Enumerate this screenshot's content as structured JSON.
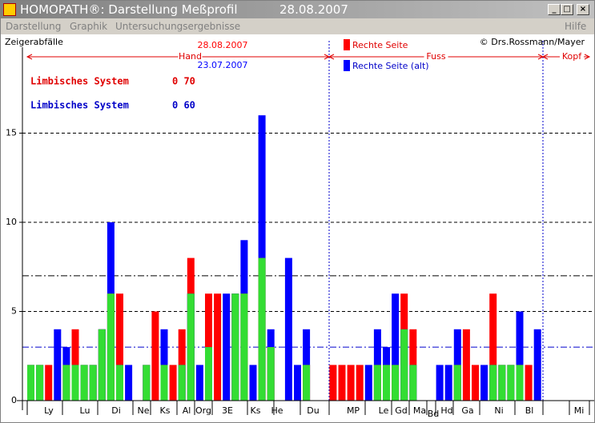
{
  "window": {
    "title": "HOMOPATH®: Darstellung Meßprofil",
    "date": "28.08.2007"
  },
  "menu": [
    "Darstellung",
    "Graphik",
    "Untersuchungsergebnisse",
    "Hilfe"
  ],
  "chart_data": {
    "type": "bar",
    "y_label": "Zeigerabfälle",
    "copyright": "© Drs.Rossmann/Mayer",
    "sections": [
      "Hand",
      "Fuss",
      "Kopf"
    ],
    "x_labels": [
      "Ly",
      "Lu",
      "Di",
      "Ne",
      "Ks",
      "Al",
      "Org",
      "3E",
      "Ks",
      "He",
      "Du",
      "MP",
      "Le",
      "Gd",
      "Ma",
      "Bd",
      "Hd",
      "Ga",
      "Ni",
      "Bl",
      "Mi"
    ],
    "series": [
      {
        "name": "Rechte Seite",
        "date": "28.08.2007",
        "color": "#ff0000",
        "values": [
          2,
          2,
          2,
          0,
          2,
          4,
          2,
          2,
          4,
          6,
          6,
          0,
          0,
          2,
          5,
          2,
          2,
          4,
          8,
          0,
          6,
          6,
          0,
          6,
          6,
          0,
          8,
          3,
          0,
          0,
          0,
          2,
          0,
          0,
          2,
          2,
          2,
          2,
          0,
          2,
          2,
          2,
          6,
          4,
          0,
          0,
          0,
          0,
          2,
          4,
          2,
          0,
          6,
          2,
          2,
          2,
          2,
          0
        ]
      },
      {
        "name": "Rechte Seite (alt)",
        "date": "23.07.2007",
        "color": "#0000ff",
        "values": [
          2,
          2,
          0,
          4,
          3,
          2,
          2,
          2,
          4,
          10,
          2,
          2,
          0,
          2,
          0,
          4,
          0,
          2,
          6,
          2,
          3,
          0,
          6,
          6,
          9,
          2,
          16,
          4,
          0,
          8,
          2,
          4,
          0,
          0,
          0,
          0,
          0,
          0,
          2,
          4,
          3,
          6,
          4,
          2,
          0,
          0,
          2,
          2,
          4,
          0,
          0,
          2,
          2,
          2,
          2,
          5,
          0,
          4
        ]
      }
    ],
    "overlap_color": "#33dd33",
    "annotations": [
      {
        "text": "Limbisches System",
        "value": "0 70",
        "color": "#e00000"
      },
      {
        "text": "Limbisches System",
        "value": "0 60",
        "color": "#0000c8"
      }
    ],
    "ylim": [
      0,
      20
    ],
    "yticks": [
      0,
      5,
      10,
      15
    ],
    "grid": true,
    "reference_lines": [
      {
        "value": 7,
        "color": "#000000"
      },
      {
        "value": 3,
        "color": "#0000cc"
      }
    ]
  }
}
